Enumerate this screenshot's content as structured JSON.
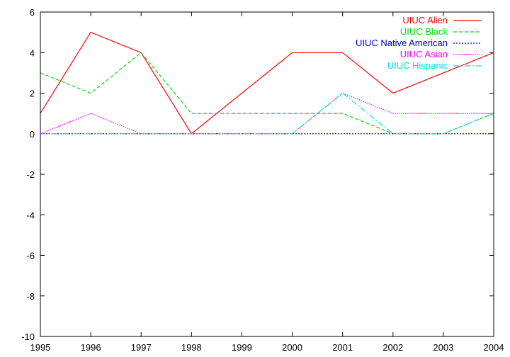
{
  "chart_data": {
    "type": "line",
    "title": "",
    "xlabel": "",
    "ylabel": "",
    "x": [
      1995,
      1996,
      1997,
      1998,
      1999,
      2000,
      2001,
      2002,
      2003,
      2004
    ],
    "xlim": [
      1995,
      2004
    ],
    "ylim": [
      -10,
      6
    ],
    "xticks": [
      "1995",
      "1996",
      "1997",
      "1998",
      "1999",
      "2000",
      "2001",
      "2002",
      "2003",
      "2004"
    ],
    "yticks": [
      "-10",
      "-8",
      "-6",
      "-4",
      "-2",
      "0",
      "2",
      "4",
      "6"
    ],
    "ytick_values": [
      -10,
      -8,
      -6,
      -4,
      -2,
      0,
      2,
      4,
      6
    ],
    "grid": false,
    "legend_position": "top-right",
    "series": [
      {
        "name": "UIUC Alien",
        "color": "#ff0000",
        "dash": "solid",
        "values": [
          1,
          5,
          4,
          0,
          2,
          4,
          4,
          2,
          3,
          4
        ]
      },
      {
        "name": "UIUC Black",
        "color": "#00dd00",
        "dash": "dashed",
        "values": [
          3,
          2,
          4,
          1,
          1,
          1,
          1,
          0,
          0,
          1
        ]
      },
      {
        "name": "UIUC Native American",
        "color": "#0000cc",
        "dash": "dotted",
        "values": [
          0,
          0,
          0,
          0,
          0,
          0,
          0,
          0,
          0,
          0
        ]
      },
      {
        "name": "UIUC Asian",
        "color": "#ff00ff",
        "dash": "dotted-fine",
        "values": [
          0,
          1,
          0,
          0,
          0,
          0,
          2,
          1,
          1,
          1
        ]
      },
      {
        "name": "UIUC Hispanic",
        "color": "#00dddd",
        "dash": "dashdot",
        "values": [
          0,
          0,
          0,
          0,
          0,
          0,
          2,
          0,
          0,
          1
        ]
      }
    ]
  }
}
